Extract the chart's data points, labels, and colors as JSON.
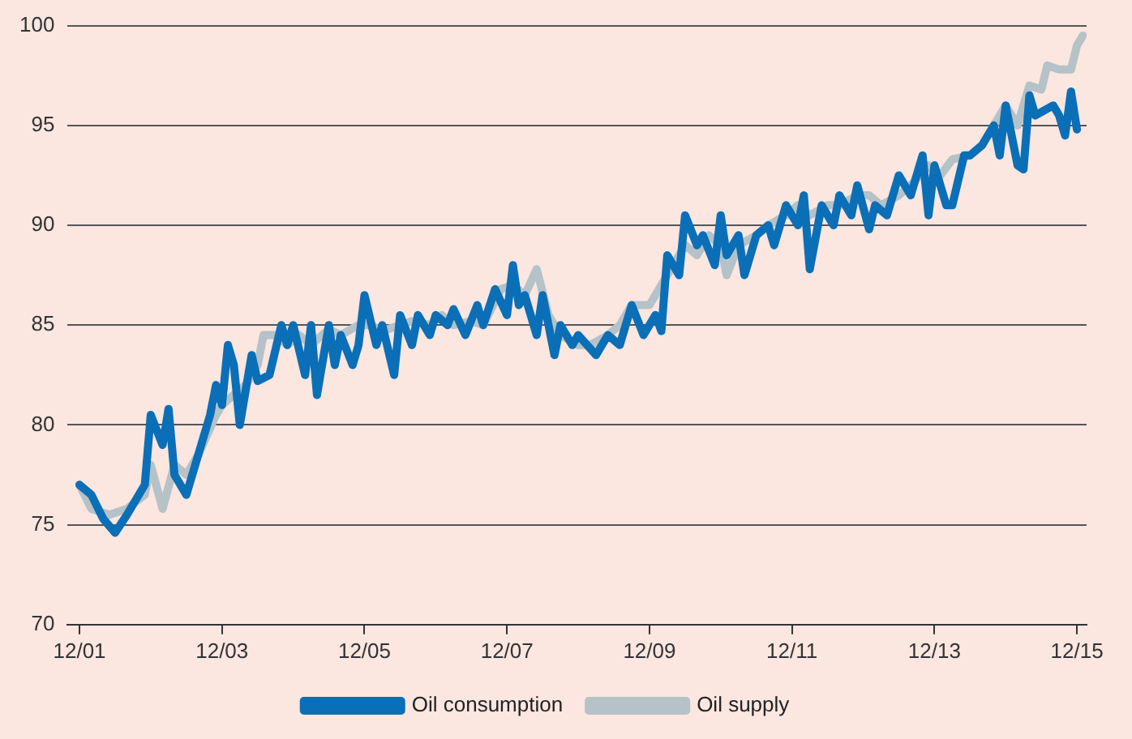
{
  "chart_data": {
    "type": "line",
    "xlim": [
      "2001-10",
      "2016-01-20"
    ],
    "xticks": [
      {
        "value": "2001-12",
        "label": "12/01"
      },
      {
        "value": "2003-12",
        "label": "12/03"
      },
      {
        "value": "2005-12",
        "label": "12/05"
      },
      {
        "value": "2007-12",
        "label": "12/07"
      },
      {
        "value": "2009-12",
        "label": "12/09"
      },
      {
        "value": "2011-12",
        "label": "12/11"
      },
      {
        "value": "2013-12",
        "label": "12/13"
      },
      {
        "value": "2015-12",
        "label": "12/15"
      }
    ],
    "ylim": [
      70,
      100
    ],
    "yticks": [
      70,
      75,
      80,
      85,
      90,
      95,
      100
    ],
    "grid": "y",
    "legend": "bottom",
    "marker": "none",
    "line_style": "solid",
    "series": [
      {
        "name": "Oil consumption",
        "color": "#0a6fb7",
        "x": [
          "2001-12",
          "2002-02",
          "2002-04",
          "2002-06",
          "2002-08",
          "2002-11",
          "2002-12",
          "2003-02",
          "2003-03",
          "2003-04",
          "2003-06",
          "2003-08",
          "2003-10",
          "2003-11",
          "2003-12",
          "2004-01",
          "2004-02",
          "2004-03",
          "2004-05",
          "2004-06",
          "2004-08",
          "2004-10",
          "2004-11",
          "2004-12",
          "2005-02",
          "2005-03",
          "2005-04",
          "2005-06",
          "2005-07",
          "2005-08",
          "2005-10",
          "2005-11",
          "2005-12",
          "2006-02",
          "2006-03",
          "2006-05",
          "2006-06",
          "2006-08",
          "2006-09",
          "2006-11",
          "2006-12",
          "2007-02",
          "2007-03",
          "2007-05",
          "2007-07",
          "2007-08",
          "2007-10",
          "2007-12",
          "2008-01",
          "2008-02",
          "2008-03",
          "2008-05",
          "2008-06",
          "2008-08",
          "2008-09",
          "2008-11",
          "2008-12",
          "2009-03",
          "2009-05",
          "2009-07",
          "2009-09",
          "2009-11",
          "2010-01",
          "2010-02",
          "2010-03",
          "2010-05",
          "2010-06",
          "2010-08",
          "2010-09",
          "2010-11",
          "2010-12",
          "2011-01",
          "2011-03",
          "2011-04",
          "2011-06",
          "2011-08",
          "2011-09",
          "2011-11",
          "2012-01",
          "2012-02",
          "2012-03",
          "2012-05",
          "2012-07",
          "2012-08",
          "2012-10",
          "2012-11",
          "2013-01",
          "2013-02",
          "2013-04",
          "2013-06",
          "2013-08",
          "2013-10",
          "2013-11",
          "2013-12",
          "2014-02",
          "2014-03",
          "2014-05",
          "2014-06",
          "2014-08",
          "2014-10",
          "2014-11",
          "2014-12",
          "2015-02",
          "2015-03",
          "2015-04",
          "2015-05",
          "2015-08",
          "2015-09",
          "2015-10",
          "2015-11",
          "2015-12"
        ],
        "values": [
          77,
          76.5,
          75.3,
          74.6,
          75.5,
          77,
          80.5,
          79,
          80.8,
          77.5,
          76.5,
          78.5,
          80.5,
          82,
          81,
          84,
          83,
          80,
          83.5,
          82.2,
          82.5,
          85,
          84,
          85,
          82.5,
          85,
          81.5,
          85,
          83,
          84.5,
          83,
          84,
          86.5,
          84,
          85,
          82.5,
          85.5,
          84,
          85.5,
          84.5,
          85.5,
          85,
          85.8,
          84.5,
          86,
          85,
          86.8,
          85.5,
          88,
          86,
          86.5,
          84.5,
          86.5,
          83.5,
          85,
          84,
          84.5,
          83.5,
          84.5,
          84,
          86,
          84.5,
          85.5,
          84.7,
          88.5,
          87.5,
          90.5,
          89,
          89.5,
          88,
          90.5,
          88.5,
          89.5,
          87.5,
          89.5,
          90,
          89,
          91,
          90,
          91.5,
          87.8,
          91,
          90,
          91.5,
          90.5,
          92,
          89.8,
          91,
          90.5,
          92.5,
          91.5,
          93.5,
          90.5,
          93,
          91,
          91,
          93.5,
          93.5,
          94,
          95,
          93.5,
          96,
          93,
          92.8,
          96.5,
          95.5,
          96,
          95.5,
          94.5,
          96.7,
          94.8
        ]
      },
      {
        "name": "Oil supply",
        "color": "#b5c2c7",
        "x": [
          "2001-12",
          "2002-02",
          "2002-05",
          "2002-08",
          "2002-11",
          "2002-12",
          "2003-02",
          "2003-04",
          "2003-06",
          "2003-08",
          "2003-11",
          "2003-12",
          "2004-02",
          "2004-04",
          "2004-06",
          "2004-07",
          "2004-09",
          "2004-11",
          "2005-01",
          "2005-03",
          "2005-06",
          "2005-08",
          "2005-11",
          "2006-01",
          "2006-03",
          "2006-06",
          "2006-08",
          "2006-11",
          "2007-01",
          "2007-03",
          "2007-06",
          "2007-08",
          "2007-11",
          "2008-01",
          "2008-03",
          "2008-05",
          "2008-07",
          "2008-09",
          "2008-12",
          "2009-02",
          "2009-05",
          "2009-07",
          "2009-09",
          "2009-12",
          "2010-02",
          "2010-04",
          "2010-06",
          "2010-08",
          "2010-10",
          "2010-12",
          "2011-01",
          "2011-03",
          "2011-06",
          "2011-08",
          "2011-11",
          "2012-01",
          "2012-03",
          "2012-06",
          "2012-08",
          "2012-11",
          "2013-01",
          "2013-03",
          "2013-06",
          "2013-08",
          "2013-11",
          "2014-01",
          "2014-03",
          "2014-06",
          "2014-08",
          "2014-11",
          "2014-12",
          "2015-02",
          "2015-04",
          "2015-06",
          "2015-07",
          "2015-09",
          "2015-11",
          "2015-12",
          "2016-01"
        ],
        "values": [
          77,
          75.8,
          75.5,
          75.8,
          76.5,
          78,
          75.8,
          78,
          77.5,
          78.5,
          80.5,
          81,
          81.5,
          82,
          83,
          84.5,
          84.5,
          84,
          84.5,
          84,
          84.8,
          84.5,
          85,
          85,
          84.7,
          85,
          85.2,
          85,
          85.5,
          85,
          85.2,
          85,
          86.8,
          87,
          86.5,
          87.8,
          85.5,
          84.5,
          84,
          84,
          84.5,
          85,
          86,
          86,
          87,
          88,
          89,
          88.5,
          89.5,
          89,
          87.5,
          89,
          89.5,
          90,
          90.5,
          91,
          90.5,
          91,
          91,
          91.5,
          91.5,
          91,
          91.5,
          92,
          93,
          92.5,
          93.3,
          93.5,
          94,
          95.5,
          96,
          95,
          97,
          96.8,
          98,
          97.8,
          97.8,
          99,
          99.5
        ]
      }
    ]
  }
}
